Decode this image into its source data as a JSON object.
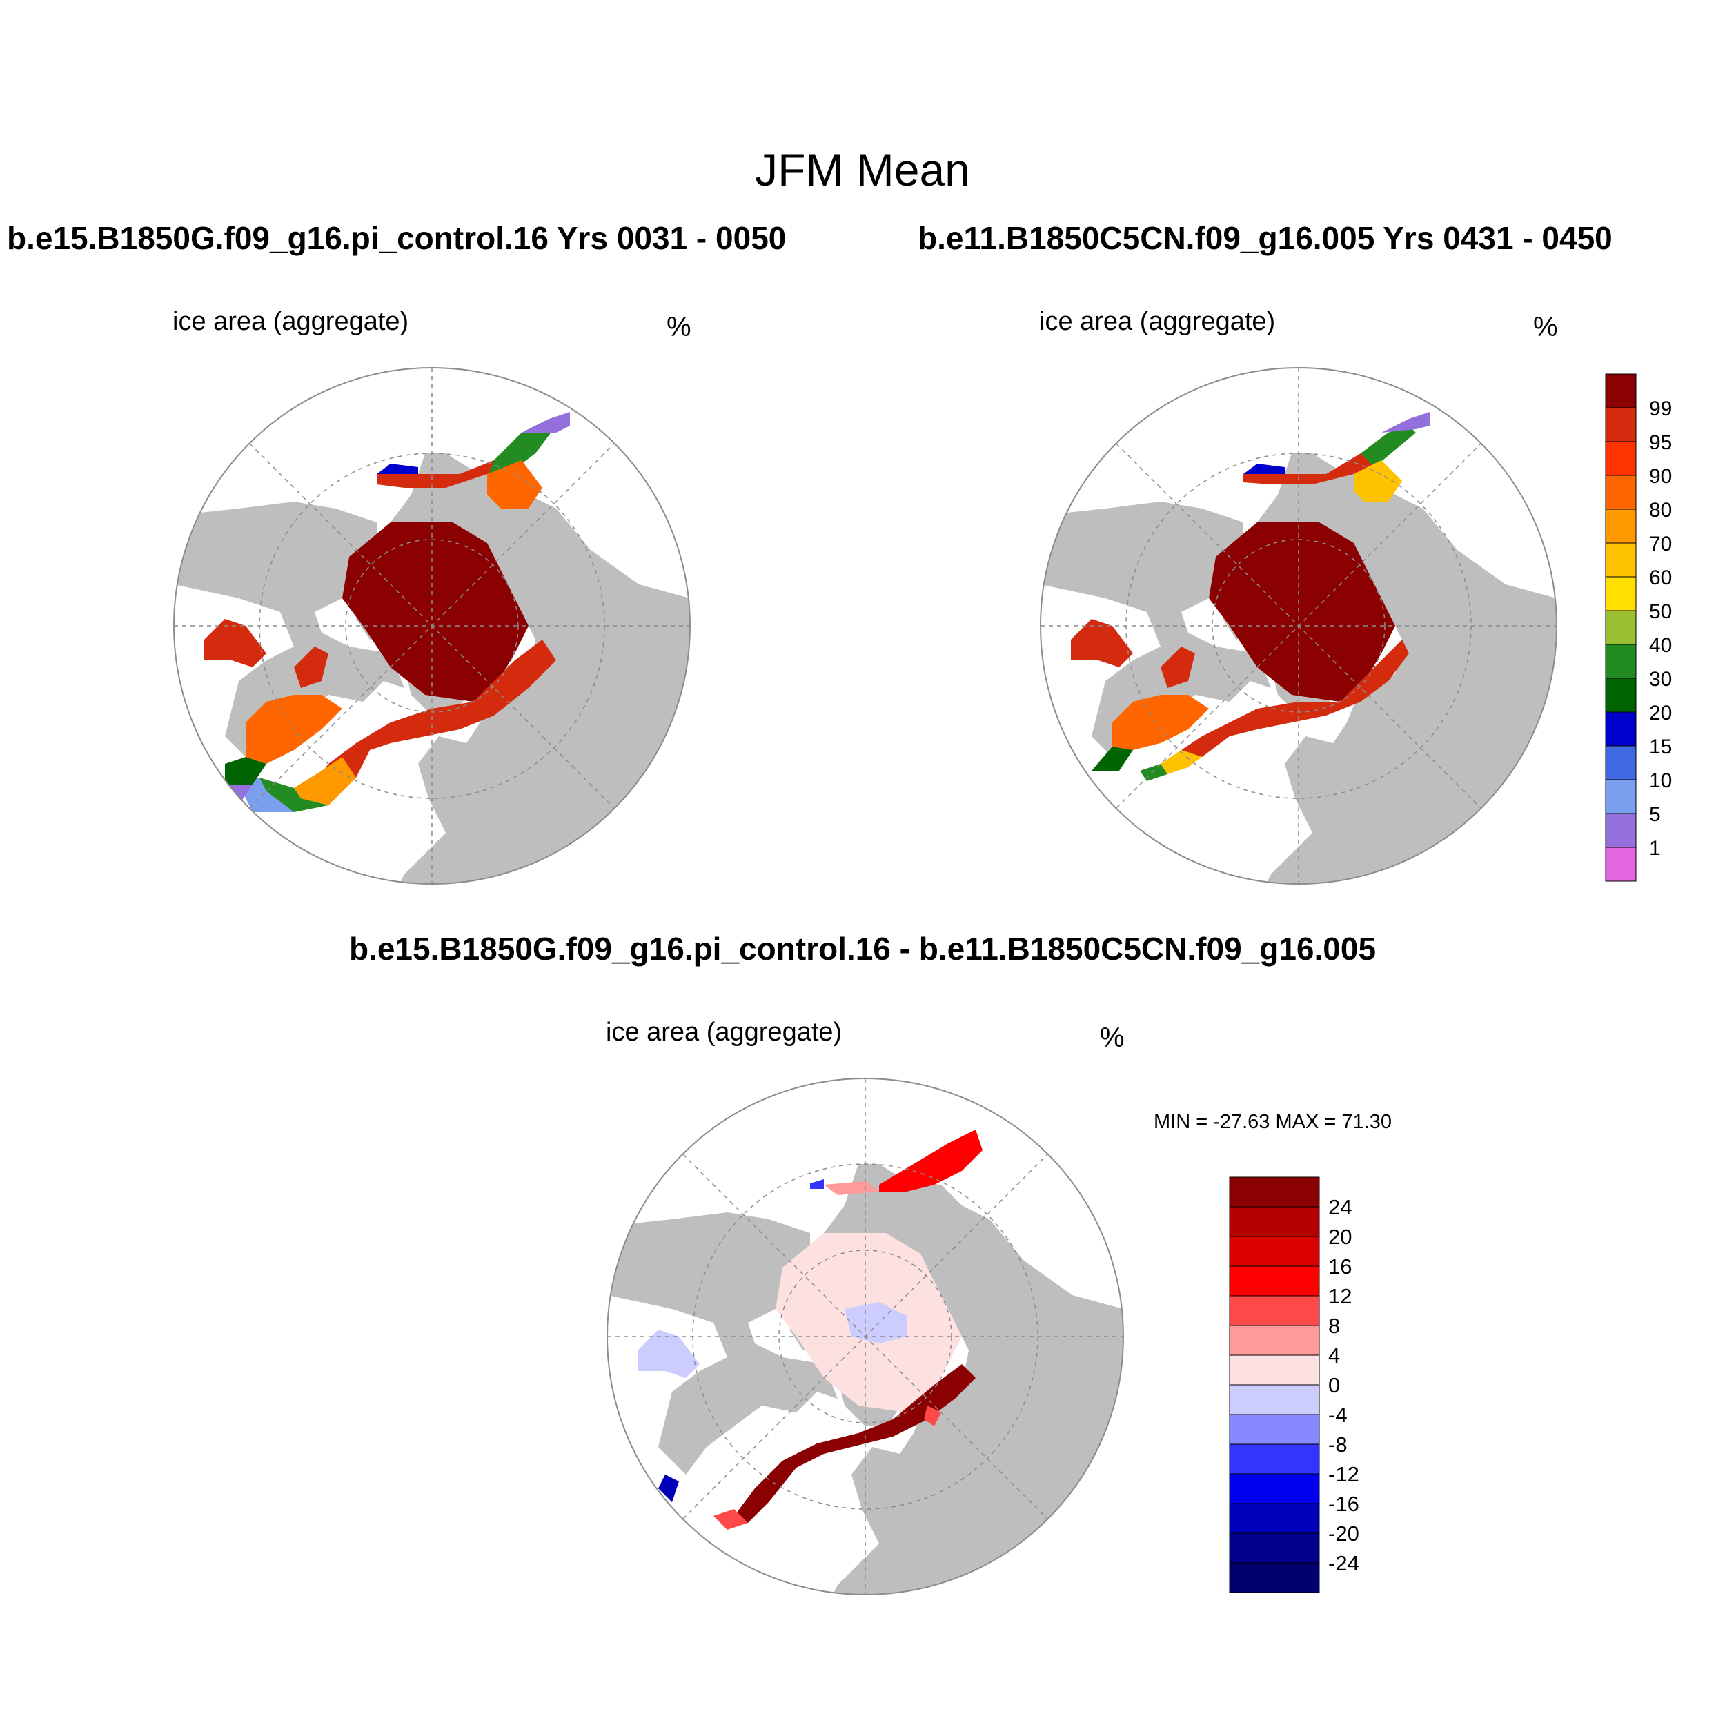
{
  "figure": {
    "main_title": "JFM Mean",
    "case1_title": "b.e15.B1850G.f09_g16.pi_control.16  Yrs 0031 - 0050",
    "case2_title": "b.e11.B1850C5CN.f09_g16.005  Yrs 0431 - 0450",
    "diff_title": "b.e15.B1850G.f09_g16.pi_control.16 - b.e11.B1850C5CN.f09_g16.005"
  },
  "panels": [
    {
      "label": "ice area  (aggregate)",
      "unit": "%"
    },
    {
      "label": "ice area  (aggregate)",
      "unit": "%"
    },
    {
      "label": "ice area  (aggregate)",
      "unit": "%",
      "minmax": "MIN = -27.63 MAX =  71.30"
    }
  ],
  "colorbar_abs": {
    "labels": [
      "99",
      "95",
      "90",
      "80",
      "70",
      "60",
      "50",
      "40",
      "30",
      "20",
      "15",
      "10",
      "5",
      "1"
    ],
    "colors": [
      "#8b0000",
      "#d42a0e",
      "#ff3300",
      "#ff6600",
      "#ff9900",
      "#ffc200",
      "#ffe000",
      "#9abf30",
      "#228b22",
      "#006400",
      "#0000cd",
      "#4169e1",
      "#7b9fef",
      "#9370db",
      "#e366e0"
    ]
  },
  "colorbar_diff": {
    "labels": [
      "24",
      "20",
      "16",
      "12",
      "8",
      "4",
      "0",
      "-4",
      "-8",
      "-12",
      "-16",
      "-20",
      "-24"
    ],
    "colors": [
      "#8b0000",
      "#b40000",
      "#dd0000",
      "#ff0000",
      "#ff4848",
      "#ff9a9a",
      "#fde0e0",
      "#ccccff",
      "#8888ff",
      "#3434ff",
      "#0000ee",
      "#0000bb",
      "#00008b",
      "#00006e"
    ]
  },
  "colors": {
    "land": "#bebebe",
    "ocean": "#ffffff",
    "grid": "#8c8c8c"
  }
}
